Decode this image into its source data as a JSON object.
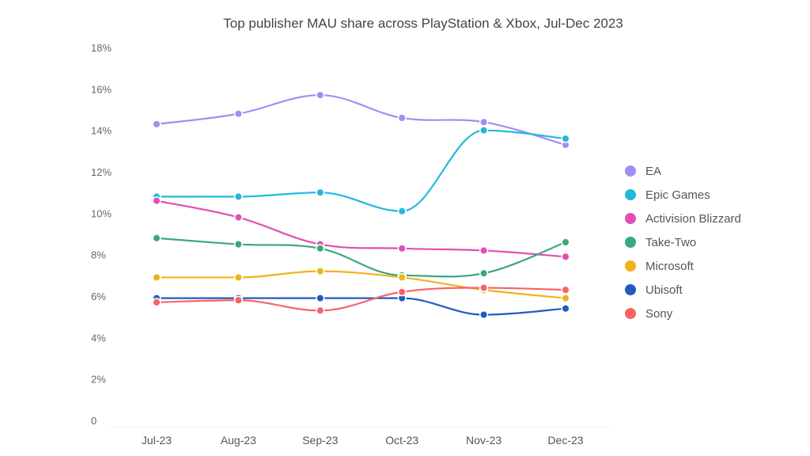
{
  "chart_data": {
    "type": "line",
    "title": "Top publisher MAU share across PlayStation & Xbox, Jul-Dec 2023",
    "xlabel": "",
    "ylabel": "",
    "categories": [
      "Jul-23",
      "Aug-23",
      "Sep-23",
      "Oct-23",
      "Nov-23",
      "Dec-23"
    ],
    "ylim": [
      0,
      18
    ],
    "yticks": [
      0,
      2,
      4,
      6,
      8,
      10,
      12,
      14,
      16,
      18
    ],
    "ytick_labels": [
      "0",
      "2%",
      "4%",
      "6%",
      "8%",
      "10%",
      "12%",
      "14%",
      "16%",
      "18%"
    ],
    "grid": false,
    "smooth": true,
    "legend_position": "right",
    "series": [
      {
        "name": "EA",
        "color": "#a48cf5",
        "values": [
          14.3,
          14.8,
          15.7,
          14.6,
          14.4,
          13.3
        ]
      },
      {
        "name": "Epic Games",
        "color": "#23b9dc",
        "values": [
          10.8,
          10.8,
          11.0,
          10.1,
          14.0,
          13.6
        ]
      },
      {
        "name": "Activision Blizzard",
        "color": "#df4fb5",
        "values": [
          10.6,
          9.8,
          8.5,
          8.3,
          8.2,
          7.9
        ]
      },
      {
        "name": "Take-Two",
        "color": "#3aa87c",
        "values": [
          8.8,
          8.5,
          8.3,
          7.0,
          7.1,
          8.6
        ]
      },
      {
        "name": "Microsoft",
        "color": "#f0b21c",
        "values": [
          6.9,
          6.9,
          7.2,
          6.9,
          6.3,
          5.9
        ]
      },
      {
        "name": "Ubisoft",
        "color": "#2459c2",
        "values": [
          5.9,
          5.9,
          5.9,
          5.9,
          5.1,
          5.4
        ]
      },
      {
        "name": "Sony",
        "color": "#f86466",
        "values": [
          5.7,
          5.8,
          5.3,
          6.2,
          6.4,
          6.3
        ]
      }
    ]
  }
}
